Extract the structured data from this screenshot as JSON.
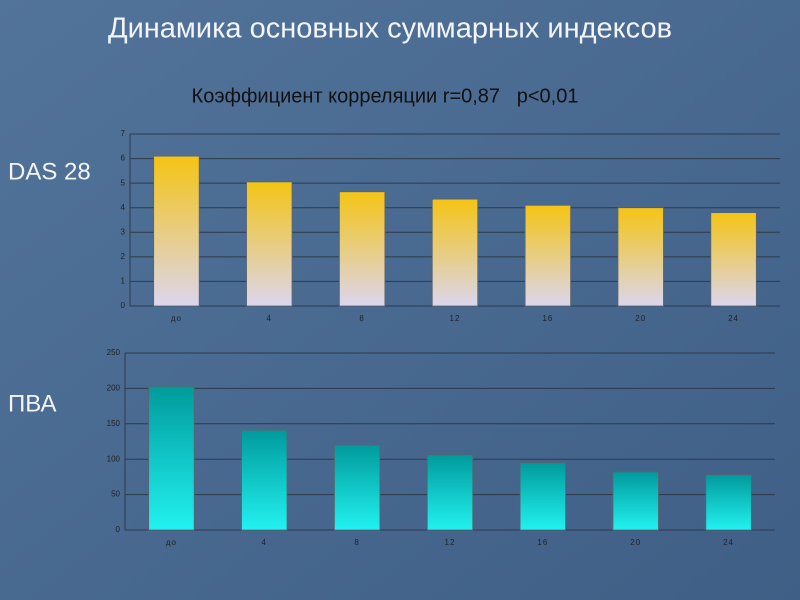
{
  "header": {
    "title": "Динамика основных суммарных индексов",
    "subtitle": "Коэффициент корреляции r=0,87   p<0,01"
  },
  "chart_data": [
    {
      "type": "bar",
      "ylabel": "DAS 28",
      "categories": [
        "до",
        "4",
        "8",
        "12",
        "16",
        "20",
        "24"
      ],
      "values": [
        6.1,
        5.05,
        4.65,
        4.35,
        4.1,
        4.0,
        3.8
      ],
      "colors": [
        "#f4c414",
        "#dcd6ee"
      ],
      "ylim": [
        0,
        7
      ],
      "yticks": [
        0,
        1,
        2,
        3,
        4,
        5,
        6,
        7
      ],
      "grid": true
    },
    {
      "type": "bar",
      "ylabel": "ПВА",
      "categories": [
        "до",
        "4",
        "8",
        "12",
        "16",
        "20",
        "24"
      ],
      "values": [
        203,
        141,
        120,
        106,
        95,
        82,
        78
      ],
      "colors": [
        "#009a9c",
        "#22f2f0"
      ],
      "ylim": [
        0,
        250
      ],
      "yticks": [
        0,
        50,
        100,
        150,
        200,
        250
      ],
      "grid": true
    }
  ]
}
